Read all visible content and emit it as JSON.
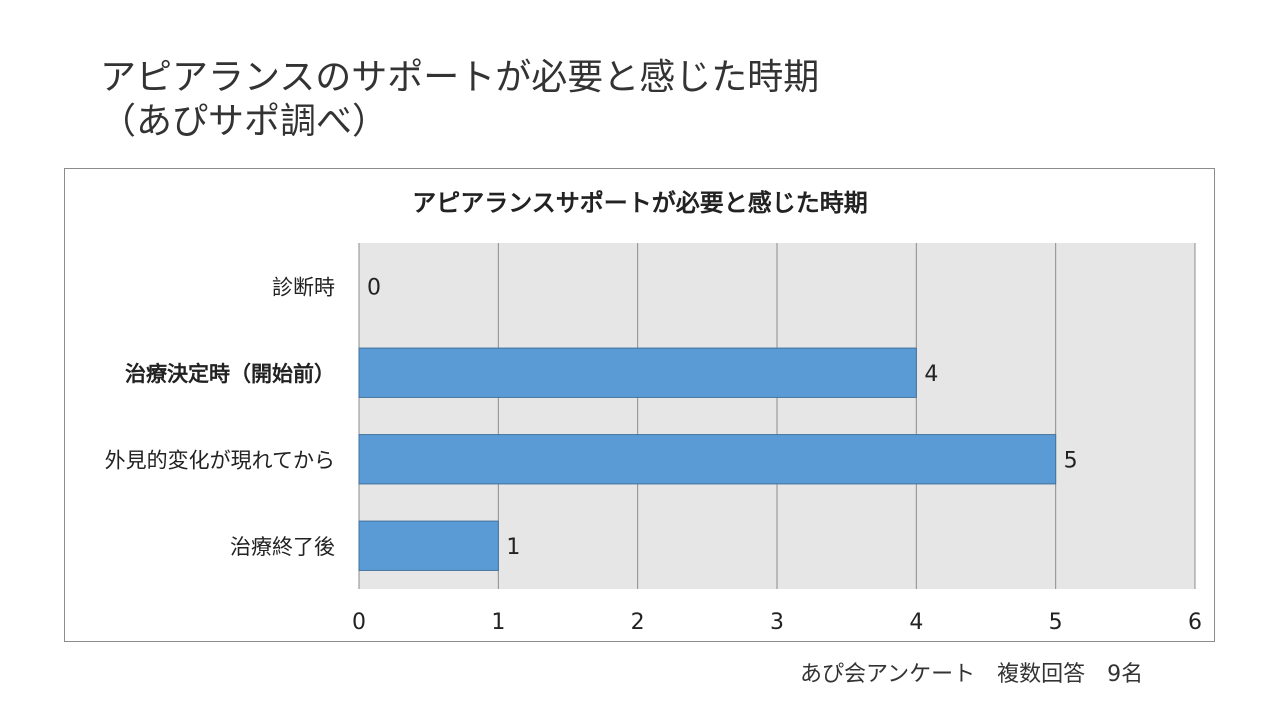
{
  "slide": {
    "title_line1": "アピアランスのサポートが必要と感じた時期",
    "title_line2": "（あぴサポ調べ）",
    "footer": "あぴ会アンケート　複数回答　9名"
  },
  "chart_data": {
    "type": "bar",
    "orientation": "horizontal",
    "title": "アピアランスサポートが必要と感じた時期",
    "categories": [
      "診断時",
      "治療決定時（開始前）",
      "外見的変化が現れてから",
      "治療終了後"
    ],
    "values": [
      0,
      4,
      5,
      1
    ],
    "highlighted_category": "治療決定時（開始前）",
    "xlim": [
      0,
      6
    ],
    "xticks": [
      "0",
      "1",
      "2",
      "3",
      "4",
      "5",
      "6"
    ],
    "xlabel": "",
    "ylabel": "",
    "grid": true,
    "legend": "none",
    "colors": {
      "bar": "#5b9bd5",
      "bar_edge": "#41719c",
      "plot_bg": "#e6e6e6",
      "grid": "#8c8c8c",
      "text": "#222222"
    }
  }
}
